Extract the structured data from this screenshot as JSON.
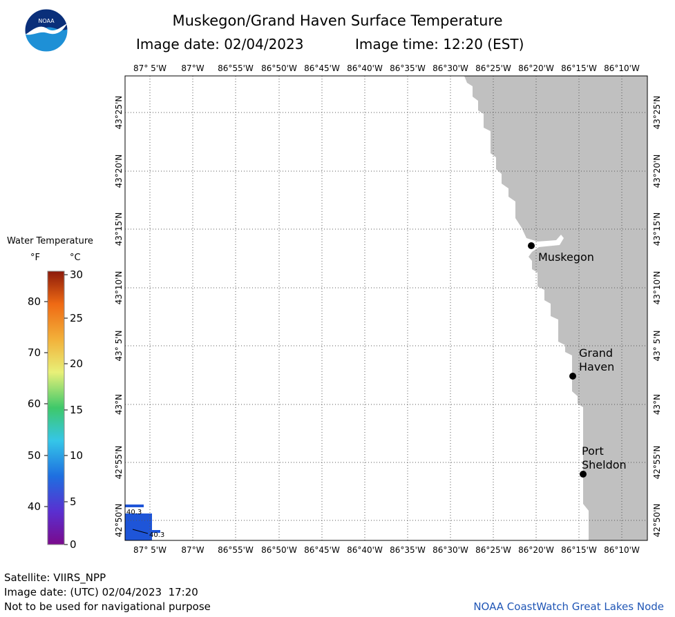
{
  "header": {
    "title": "Muskegon/Grand Haven Surface Temperature",
    "image_date": "Image date: 02/04/2023",
    "image_time": "Image time: 12:20 (EST)"
  },
  "logo": {
    "text": "NOAA",
    "colors": {
      "top": "#0a2f7a",
      "bottom": "#1e90d6",
      "bird": "#ffffff"
    }
  },
  "map": {
    "lon_labels": [
      "87° 5'W",
      "87°W",
      "86°55'W",
      "86°50'W",
      "86°45'W",
      "86°40'W",
      "86°35'W",
      "86°30'W",
      "86°25'W",
      "86°20'W",
      "86°15'W",
      "86°10'W"
    ],
    "lat_labels": [
      "43°25'N",
      "43°20'N",
      "43°15'N",
      "43°10'N",
      "43° 5'N",
      "43°N",
      "42°55'N",
      "42°50'N"
    ],
    "land_color": "#c0c0c0",
    "water_patch_color": "#1e55d8",
    "places": [
      {
        "name": [
          "Muskegon"
        ]
      },
      {
        "name": [
          "Grand",
          "Haven"
        ]
      },
      {
        "name": [
          "Port",
          "Sheldon"
        ]
      }
    ],
    "temp_labels": [
      "40.3",
      "40.3"
    ]
  },
  "legend": {
    "title": "Water Temperature",
    "unit_f": "°F",
    "unit_c": "°C",
    "f_ticks": [
      "80",
      "70",
      "60",
      "50",
      "40"
    ],
    "c_ticks": [
      "30",
      "25",
      "20",
      "15",
      "10",
      "5",
      "0"
    ]
  },
  "footer": {
    "satellite": "Satellite: VIIRS_NPP",
    "utc_date": "Image date: (UTC) 02/04/2023  17:20",
    "disclaimer": "Not to be used for navigational purpose",
    "credit": "NOAA CoastWatch Great Lakes Node"
  }
}
